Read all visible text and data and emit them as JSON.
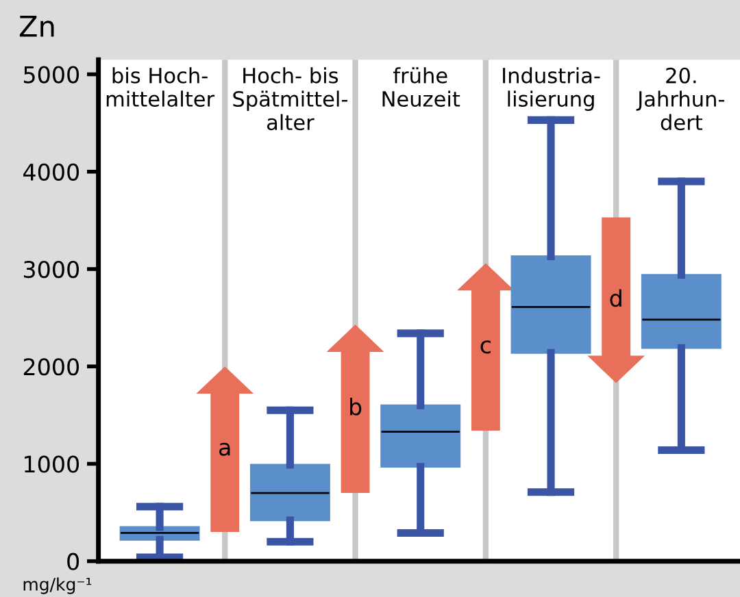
{
  "chart_data": {
    "type": "box",
    "title": "Zn",
    "ylabel": "mg/kg⁻¹",
    "categories": [
      "bis Hoch-\nmittelalter",
      "Hoch- bis\nSpätmittel-\nalter",
      "frühe\nNeuzeit",
      "Industria-\nlisierung",
      "20.\nJahrhun-\ndert"
    ],
    "boxes": [
      {
        "low": 40,
        "q1": 220,
        "median": 290,
        "q3": 350,
        "high": 560
      },
      {
        "low": 200,
        "q1": 420,
        "median": 700,
        "q3": 990,
        "high": 1550
      },
      {
        "low": 290,
        "q1": 970,
        "median": 1330,
        "q3": 1600,
        "high": 2340
      },
      {
        "low": 710,
        "q1": 2140,
        "median": 2610,
        "q3": 3130,
        "high": 4530
      },
      {
        "low": 1140,
        "q1": 2190,
        "median": 2480,
        "q3": 2940,
        "high": 3900
      }
    ],
    "color": "#5b8fcb",
    "ylim": [
      0,
      5150
    ],
    "yticks": [
      0,
      1000,
      2000,
      3000,
      4000,
      5000
    ],
    "annotations": [
      "a",
      "b",
      "c",
      "d"
    ],
    "grid": false
  }
}
